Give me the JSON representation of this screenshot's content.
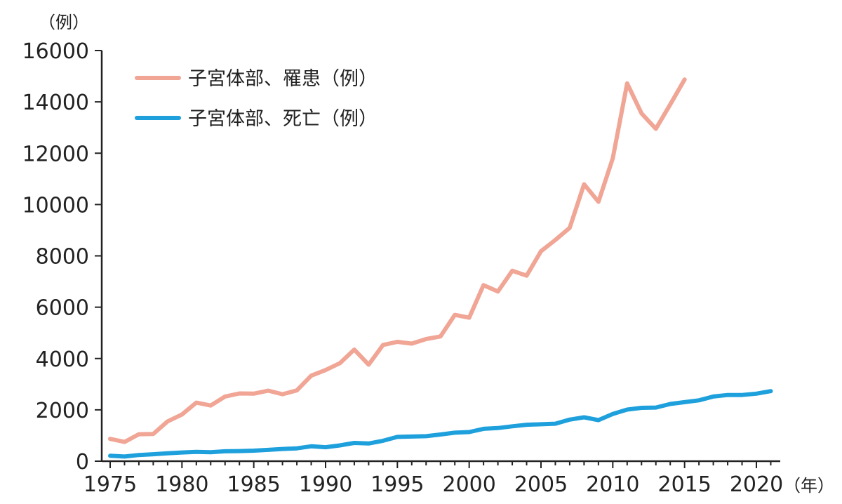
{
  "chart_data": {
    "type": "line",
    "y_unit_label": "（例）",
    "x_unit_label": "（年）",
    "ylim": [
      0,
      16000
    ],
    "xlim": [
      1975,
      2020
    ],
    "y_ticks": [
      "0",
      "2000",
      "4000",
      "6000",
      "8000",
      "10000",
      "12000",
      "14000",
      "16000"
    ],
    "x_ticks": [
      "1975",
      "1980",
      "1985",
      "1990",
      "1995",
      "2000",
      "2005",
      "2010",
      "2015",
      "2020"
    ],
    "grid": false,
    "legend_position": "top-left",
    "series": [
      {
        "name": "子宮体部、罹患（例）",
        "color": "#f0a595",
        "x": [
          1975,
          1976,
          1977,
          1978,
          1979,
          1980,
          1981,
          1982,
          1983,
          1984,
          1985,
          1986,
          1987,
          1988,
          1989,
          1990,
          1991,
          1992,
          1993,
          1994,
          1995,
          1996,
          1997,
          1998,
          1999,
          2000,
          2001,
          2002,
          2003,
          2004,
          2005,
          2006,
          2007,
          2008,
          2009,
          2010,
          2011,
          2012,
          2013,
          2014,
          2015
        ],
        "values": [
          870,
          750,
          1050,
          1060,
          1550,
          1820,
          2280,
          2170,
          2520,
          2640,
          2630,
          2750,
          2610,
          2760,
          3330,
          3550,
          3820,
          4350,
          3760,
          4530,
          4650,
          4580,
          4760,
          4860,
          5700,
          5590,
          6860,
          6610,
          7420,
          7230,
          8180,
          8620,
          9090,
          10790,
          10110,
          11800,
          14720,
          13550,
          12950,
          13900,
          14870
        ]
      },
      {
        "name": "子宮体部、死亡（例）",
        "color": "#1ea0dc",
        "x": [
          1975,
          1976,
          1977,
          1978,
          1979,
          1980,
          1981,
          1982,
          1983,
          1984,
          1985,
          1986,
          1987,
          1988,
          1989,
          1990,
          1991,
          1992,
          1993,
          1994,
          1995,
          1996,
          1997,
          1998,
          1999,
          2000,
          2001,
          2002,
          2003,
          2004,
          2005,
          2006,
          2007,
          2008,
          2009,
          2010,
          2011,
          2012,
          2013,
          2014,
          2015,
          2016,
          2017,
          2018,
          2019,
          2020,
          2021
        ],
        "values": [
          210,
          180,
          240,
          270,
          310,
          340,
          365,
          350,
          385,
          395,
          410,
          440,
          475,
          500,
          580,
          545,
          615,
          710,
          690,
          795,
          945,
          960,
          975,
          1040,
          1110,
          1135,
          1260,
          1290,
          1360,
          1420,
          1440,
          1460,
          1620,
          1710,
          1600,
          1840,
          2010,
          2080,
          2090,
          2230,
          2300,
          2370,
          2520,
          2580,
          2580,
          2630,
          2730
        ]
      }
    ]
  }
}
